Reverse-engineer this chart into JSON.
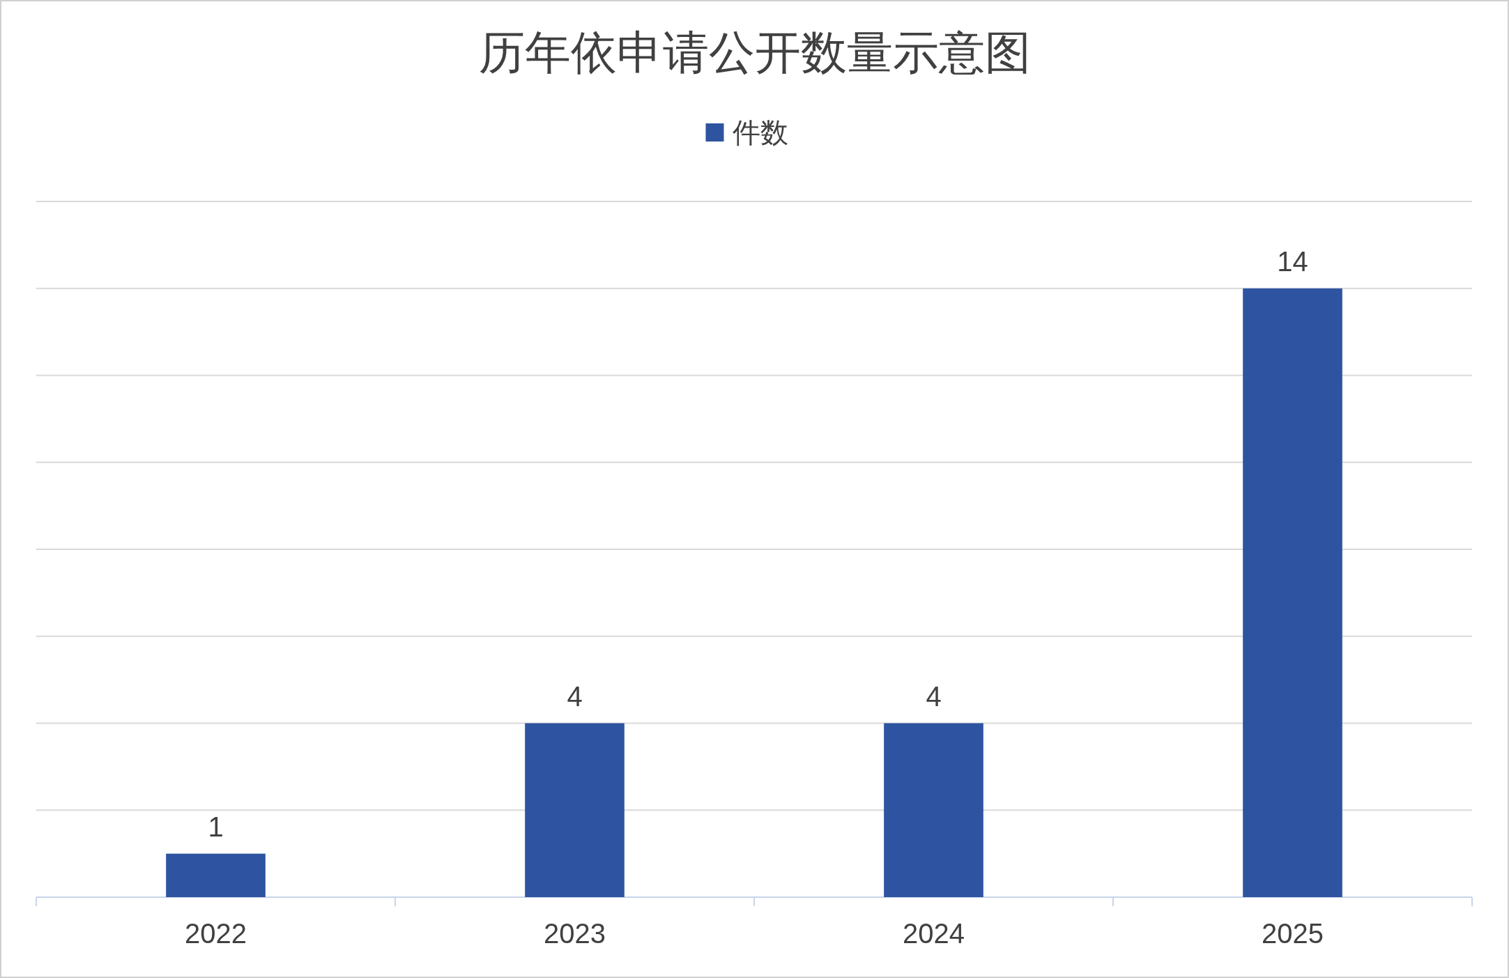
{
  "chart_data": {
    "type": "bar",
    "title": "历年依申请公开数量示意图",
    "categories": [
      "2022",
      "2023",
      "2024",
      "2025"
    ],
    "series": [
      {
        "name": "件数",
        "color": "#2e54a1",
        "values": [
          1,
          4,
          4,
          14
        ]
      }
    ],
    "ylim": [
      0,
      16
    ],
    "yticks": [
      {
        "value": 0,
        "label": null
      },
      {
        "value": 2,
        "label": null
      },
      {
        "value": 4,
        "label": null
      },
      {
        "value": 6,
        "label": null
      },
      {
        "value": 8,
        "label": null
      },
      {
        "value": 10,
        "label": null
      },
      {
        "value": 12,
        "label": null
      },
      {
        "value": 14,
        "label": null
      },
      {
        "value": 16,
        "label": null
      }
    ],
    "tick_labels": "x",
    "grid": "y",
    "legend": "top",
    "data_labels": true
  }
}
